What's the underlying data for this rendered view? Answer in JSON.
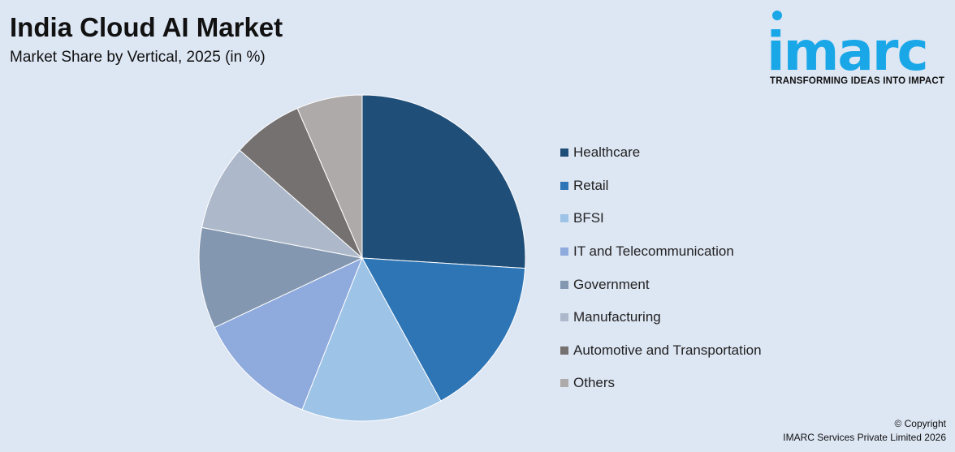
{
  "header": {
    "title": "India Cloud AI Market",
    "subtitle": "Market Share by Vertical, 2025 (in %)"
  },
  "logo": {
    "text": "imarc",
    "tagline": "TRANSFORMING IDEAS INTO IMPACT",
    "color": "#1aa7e8"
  },
  "footer": {
    "copyright_line1": "© Copyright",
    "copyright_line2": "IMARC Services Private Limited 2026"
  },
  "chart_data": {
    "type": "pie",
    "title": "India Cloud AI Market",
    "subtitle": "Market Share by Vertical, 2025 (in %)",
    "categories": [
      "Healthcare",
      "Retail",
      "BFSI",
      "IT and Telecommunication",
      "Government",
      "Manufacturing",
      "Automotive and Transportation",
      "Others"
    ],
    "values": [
      26,
      16,
      14,
      12,
      10,
      8.5,
      7,
      6.5
    ],
    "colors": [
      "#1f4e79",
      "#2e75b6",
      "#9dc3e6",
      "#8faadc",
      "#8497b0",
      "#adb9ca",
      "#767171",
      "#aeaaaa"
    ],
    "legend_position": "right"
  }
}
